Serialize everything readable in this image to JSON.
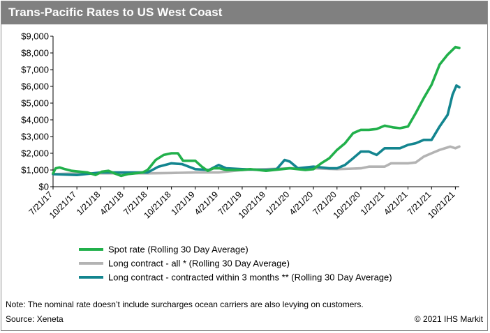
{
  "header": {
    "title": "Trans-Pacific Rates to US West Coast"
  },
  "footer": {
    "note": "Note: The nominal rate doesn’t include surcharges ocean carriers are also levying on customers.",
    "source": "Source: Xeneta",
    "copyright": "© 2021 IHS Markit"
  },
  "chart_data": {
    "type": "line",
    "title": "Trans-Pacific Rates to US West Coast",
    "xlabel": "",
    "ylabel": "",
    "ylim": [
      0,
      9000
    ],
    "y_ticks": [
      0,
      1000,
      2000,
      3000,
      4000,
      5000,
      6000,
      7000,
      8000,
      9000
    ],
    "y_tick_labels": [
      "$0",
      "$1,000",
      "$2,000",
      "$3,000",
      "$4,000",
      "$5,000",
      "$6,000",
      "$7,000",
      "$8,000",
      "$9,000"
    ],
    "x_tick_labels": [
      "7/21/17",
      "10/21/17",
      "1/21/18",
      "4/21/18",
      "7/21/18",
      "10/21/18",
      "1/21/19",
      "4/21/19",
      "7/21/19",
      "10/21/19",
      "1/21/20",
      "4/21/20",
      "7/21/20",
      "10/21/20",
      "1/21/21",
      "4/21/21",
      "7/21/21",
      "10/21/21"
    ],
    "x_range": [
      "2017-07-21",
      "2021-11-05"
    ],
    "grid": false,
    "legend_position": "bottom",
    "colors": {
      "spot": "#21b04b",
      "long_all": "#b3b3b3",
      "long_3m": "#13858f"
    },
    "series": [
      {
        "name": "Spot rate (Rolling 30 Day Average)",
        "color": "#21b04b",
        "points": [
          [
            "2017-07-21",
            800
          ],
          [
            "2017-07-31",
            1100
          ],
          [
            "2017-08-15",
            1150
          ],
          [
            "2017-09-05",
            1050
          ],
          [
            "2017-10-01",
            950
          ],
          [
            "2017-11-01",
            900
          ],
          [
            "2017-12-01",
            850
          ],
          [
            "2018-01-01",
            700
          ],
          [
            "2018-01-25",
            900
          ],
          [
            "2018-02-20",
            950
          ],
          [
            "2018-03-15",
            800
          ],
          [
            "2018-04-10",
            650
          ],
          [
            "2018-05-05",
            750
          ],
          [
            "2018-06-01",
            800
          ],
          [
            "2018-07-01",
            850
          ],
          [
            "2018-07-21",
            1000
          ],
          [
            "2018-08-21",
            1600
          ],
          [
            "2018-09-21",
            1900
          ],
          [
            "2018-10-21",
            2000
          ],
          [
            "2018-11-15",
            2000
          ],
          [
            "2018-12-05",
            1550
          ],
          [
            "2018-12-25",
            1550
          ],
          [
            "2019-01-21",
            1550
          ],
          [
            "2019-02-15",
            1200
          ],
          [
            "2019-03-10",
            950
          ],
          [
            "2019-04-01",
            1100
          ],
          [
            "2019-04-25",
            1100
          ],
          [
            "2019-05-21",
            1000
          ],
          [
            "2019-06-21",
            1000
          ],
          [
            "2019-07-21",
            1000
          ],
          [
            "2019-08-21",
            1050
          ],
          [
            "2019-09-21",
            1000
          ],
          [
            "2019-10-21",
            950
          ],
          [
            "2019-11-21",
            1000
          ],
          [
            "2019-12-21",
            1050
          ],
          [
            "2020-01-21",
            1100
          ],
          [
            "2020-02-21",
            1050
          ],
          [
            "2020-03-21",
            1000
          ],
          [
            "2020-04-21",
            1050
          ],
          [
            "2020-05-21",
            1400
          ],
          [
            "2020-06-21",
            1700
          ],
          [
            "2020-07-21",
            2200
          ],
          [
            "2020-08-21",
            2600
          ],
          [
            "2020-09-21",
            3200
          ],
          [
            "2020-10-21",
            3400
          ],
          [
            "2020-11-21",
            3400
          ],
          [
            "2020-12-21",
            3450
          ],
          [
            "2021-01-21",
            3650
          ],
          [
            "2021-02-21",
            3550
          ],
          [
            "2021-03-21",
            3500
          ],
          [
            "2021-04-21",
            3600
          ],
          [
            "2021-05-21",
            4400
          ],
          [
            "2021-06-21",
            5300
          ],
          [
            "2021-07-21",
            6100
          ],
          [
            "2021-08-21",
            7300
          ],
          [
            "2021-09-21",
            7900
          ],
          [
            "2021-10-21",
            8350
          ],
          [
            "2021-11-05",
            8300
          ]
        ]
      },
      {
        "name": "Long contract - all * (Rolling 30 Day Average)",
        "color": "#b3b3b3",
        "points": [
          [
            "2017-07-21",
            750
          ],
          [
            "2017-10-21",
            800
          ],
          [
            "2018-01-21",
            800
          ],
          [
            "2018-04-21",
            800
          ],
          [
            "2018-07-21",
            800
          ],
          [
            "2018-10-21",
            820
          ],
          [
            "2019-01-21",
            850
          ],
          [
            "2019-04-21",
            850
          ],
          [
            "2019-07-21",
            1000
          ],
          [
            "2019-10-21",
            1050
          ],
          [
            "2020-01-21",
            1100
          ],
          [
            "2020-04-21",
            1100
          ],
          [
            "2020-07-21",
            1050
          ],
          [
            "2020-10-21",
            1100
          ],
          [
            "2020-11-21",
            1200
          ],
          [
            "2021-01-21",
            1200
          ],
          [
            "2021-02-15",
            1400
          ],
          [
            "2021-04-21",
            1400
          ],
          [
            "2021-05-21",
            1450
          ],
          [
            "2021-06-21",
            1800
          ],
          [
            "2021-07-21",
            2000
          ],
          [
            "2021-08-21",
            2200
          ],
          [
            "2021-09-21",
            2350
          ],
          [
            "2021-10-01",
            2400
          ],
          [
            "2021-10-21",
            2300
          ],
          [
            "2021-11-05",
            2400
          ]
        ]
      },
      {
        "name": "Long contract - contracted within 3 months ** (Rolling 30 Day Average)",
        "color": "#13858f",
        "points": [
          [
            "2017-07-21",
            750
          ],
          [
            "2017-10-21",
            700
          ],
          [
            "2018-01-21",
            850
          ],
          [
            "2018-04-21",
            850
          ],
          [
            "2018-07-21",
            850
          ],
          [
            "2018-09-01",
            1200
          ],
          [
            "2018-10-21",
            1400
          ],
          [
            "2018-12-01",
            1350
          ],
          [
            "2019-01-21",
            1050
          ],
          [
            "2019-03-15",
            1000
          ],
          [
            "2019-04-21",
            1300
          ],
          [
            "2019-05-21",
            1100
          ],
          [
            "2019-07-21",
            1050
          ],
          [
            "2019-10-21",
            1000
          ],
          [
            "2019-12-01",
            1050
          ],
          [
            "2020-01-01",
            1600
          ],
          [
            "2020-01-21",
            1500
          ],
          [
            "2020-02-21",
            1100
          ],
          [
            "2020-04-21",
            1200
          ],
          [
            "2020-06-21",
            1100
          ],
          [
            "2020-07-21",
            1100
          ],
          [
            "2020-08-21",
            1300
          ],
          [
            "2020-09-21",
            1700
          ],
          [
            "2020-10-21",
            2100
          ],
          [
            "2020-11-21",
            2100
          ],
          [
            "2020-12-21",
            1900
          ],
          [
            "2021-01-21",
            2300
          ],
          [
            "2021-03-21",
            2300
          ],
          [
            "2021-04-21",
            2500
          ],
          [
            "2021-05-21",
            2600
          ],
          [
            "2021-06-21",
            2800
          ],
          [
            "2021-07-21",
            2800
          ],
          [
            "2021-08-21",
            3600
          ],
          [
            "2021-09-21",
            4300
          ],
          [
            "2021-10-10",
            5500
          ],
          [
            "2021-10-25",
            6050
          ],
          [
            "2021-11-05",
            5950
          ]
        ]
      }
    ]
  }
}
